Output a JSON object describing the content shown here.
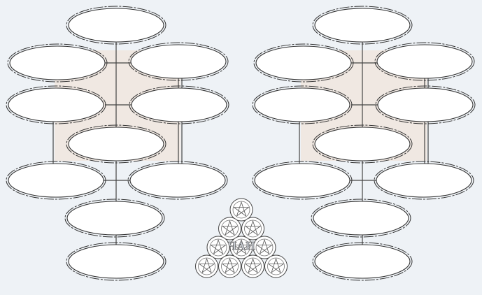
{
  "diagram": {
    "background": "#eef2f6",
    "node_fill": "#ffffff",
    "node_stroke": "#333333",
    "connector_color": "#444444",
    "band_color": "#f1e4da",
    "trees": [
      {
        "id": "left-tree",
        "nodes": [
          {
            "id": "L1",
            "text": ""
          },
          {
            "id": "L2",
            "text": ""
          },
          {
            "id": "L3",
            "text": ""
          },
          {
            "id": "L4",
            "text": ""
          },
          {
            "id": "L5",
            "text": ""
          },
          {
            "id": "L6",
            "text": ""
          },
          {
            "id": "L7",
            "text": ""
          },
          {
            "id": "L8",
            "text": ""
          },
          {
            "id": "L9",
            "text": ""
          },
          {
            "id": "L10",
            "text": ""
          }
        ]
      },
      {
        "id": "right-tree",
        "nodes": [
          {
            "id": "R1",
            "text": ""
          },
          {
            "id": "R2",
            "text": ""
          },
          {
            "id": "R3",
            "text": ""
          },
          {
            "id": "R4",
            "text": ""
          },
          {
            "id": "R5",
            "text": ""
          },
          {
            "id": "R6",
            "text": ""
          },
          {
            "id": "R7",
            "text": ""
          },
          {
            "id": "R8",
            "text": ""
          },
          {
            "id": "R9",
            "text": ""
          },
          {
            "id": "R10",
            "text": ""
          }
        ]
      }
    ],
    "emblem": {
      "name": "circle-pyramid-emblem",
      "inscription": "ЧАИ",
      "circle_rows": [
        1,
        2,
        3,
        4
      ]
    }
  }
}
